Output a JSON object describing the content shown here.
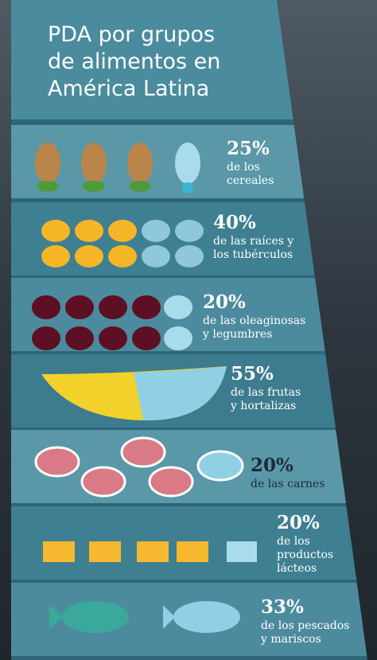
{
  "title": [
    "PDA por grupos",
    "de alimentos en",
    "América Latina"
  ],
  "rows": [
    {
      "percent": "25%",
      "lines": [
        "de los",
        "cereales"
      ]
    },
    {
      "percent": "40%",
      "lines": [
        "de las raíces y",
        "los tubérculos"
      ]
    },
    {
      "percent": "20%",
      "lines": [
        "de las oleaginosas",
        "y legumbres"
      ]
    },
    {
      "percent": "55%",
      "lines": [
        "de las frutas",
        "y hortalizas"
      ]
    },
    {
      "percent": "20%",
      "lines": [
        "de las carnes"
      ]
    },
    {
      "percent": "20%",
      "lines": [
        "de los",
        "productos",
        "lácteos"
      ]
    },
    {
      "percent": "33%",
      "lines": [
        "de los pescados",
        "y mariscos"
      ]
    }
  ]
}
